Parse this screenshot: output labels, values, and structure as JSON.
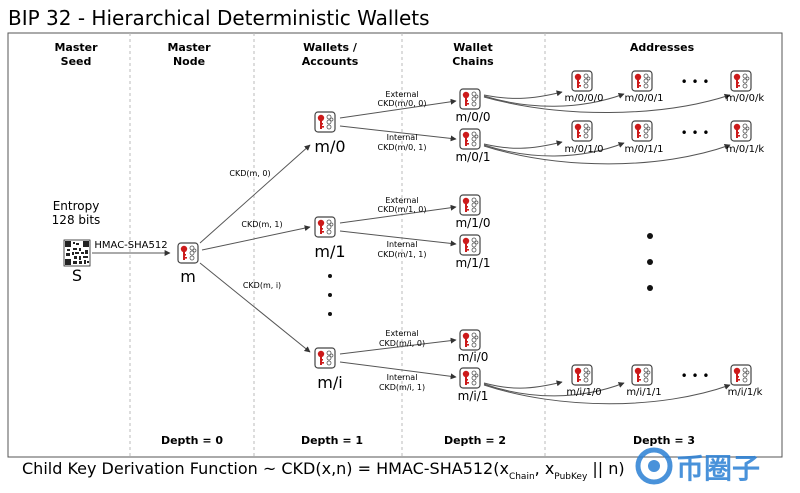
{
  "title": "BIP 32 - Hierarchical Deterministic Wallets",
  "columns": {
    "master_seed": [
      "Master",
      "Seed"
    ],
    "master_node": [
      "Master",
      "Node"
    ],
    "wallets_accounts": [
      "Wallets /",
      "Accounts"
    ],
    "wallet_chains": [
      "Wallet",
      "Chains"
    ],
    "addresses": [
      "Addresses"
    ]
  },
  "seed": {
    "entropy": [
      "Entropy",
      "128 bits"
    ],
    "hmac": "HMAC-SHA512",
    "label": "S"
  },
  "master": {
    "label": "m"
  },
  "accounts": [
    {
      "label": "m/0",
      "edge": "CKD(m, 0)"
    },
    {
      "label": "m/1",
      "edge": "CKD(m, 1)"
    },
    {
      "label": "m/i",
      "edge": "CKD(m, i)"
    }
  ],
  "chains": [
    {
      "label": "m/0/0",
      "type": "External",
      "ckd": "CKD(m/0, 0)"
    },
    {
      "label": "m/0/1",
      "type": "Internal",
      "ckd": "CKD(m/0, 1)"
    },
    {
      "label": "m/1/0",
      "type": "External",
      "ckd": "CKD(m/1, 0)"
    },
    {
      "label": "m/1/1",
      "type": "Internal",
      "ckd": "CKD(m/1, 1)"
    },
    {
      "label": "m/i/0",
      "type": "External",
      "ckd": "CKD(m/i, 0)"
    },
    {
      "label": "m/i/1",
      "type": "Internal",
      "ckd": "CKD(m/i, 1)"
    }
  ],
  "addresses": {
    "row_0_0": [
      "m/0/0/0",
      "m/0/0/1",
      "m/0/0/k"
    ],
    "row_0_1": [
      "m/0/1/0",
      "m/0/1/1",
      "m/0/1/k"
    ],
    "row_i_1": [
      "m/i/1/0",
      "m/i/1/1",
      "m/i/1/k"
    ]
  },
  "ellipsis": "•  •  •",
  "depths": [
    "Depth = 0",
    "Depth = 1",
    "Depth = 2",
    "Depth = 3"
  ],
  "formula": {
    "prefix": "Child Key Derivation Function ~  CKD(x,n) = HMAC-SHA512(x",
    "sub1": "Chain",
    "mid": ", x",
    "sub2": "PubKey",
    "suffix": " || n)"
  },
  "watermark": "币圈子",
  "colors": {
    "key_red": "#cc1a1a",
    "icon_border": "#444444",
    "divider": "#bbbbbb"
  }
}
